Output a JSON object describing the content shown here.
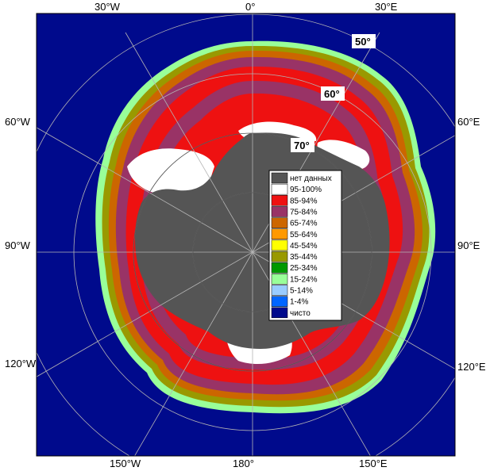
{
  "map": {
    "lon_labels": {
      "top": [
        "30°W",
        "0°",
        "30°E"
      ],
      "left": [
        "60°W",
        "90°W",
        "120°W"
      ],
      "right": [
        "60°E",
        "90°E",
        "120°E"
      ],
      "bottom": [
        "150°W",
        "180°",
        "150°E"
      ]
    },
    "lat_labels": [
      "50°",
      "60°",
      "70°"
    ],
    "colors": {
      "ocean": "#000a8c",
      "land": "#555555",
      "frame": "#000000",
      "grid": "#b4b4b4"
    }
  },
  "legend": {
    "items": [
      {
        "label": "нет данных",
        "color": "#555555"
      },
      {
        "label": "95-100%",
        "color": "#ffffff"
      },
      {
        "label": "85-94%",
        "color": "#ee1111"
      },
      {
        "label": "75-84%",
        "color": "#993366"
      },
      {
        "label": "65-74%",
        "color": "#cc6600"
      },
      {
        "label": "55-64%",
        "color": "#ff9900"
      },
      {
        "label": "45-54%",
        "color": "#ffff00"
      },
      {
        "label": "35-44%",
        "color": "#999900"
      },
      {
        "label": "25-34%",
        "color": "#009900"
      },
      {
        "label": "15-24%",
        "color": "#99ff99"
      },
      {
        "label": "5-14%",
        "color": "#99ccff"
      },
      {
        "label": "1-4%",
        "color": "#0066ff"
      },
      {
        "label": "чисто",
        "color": "#000a8c"
      }
    ]
  }
}
